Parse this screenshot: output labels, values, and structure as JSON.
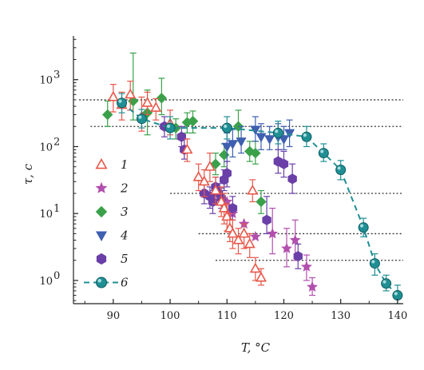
{
  "chart_data": {
    "type": "scatter",
    "title": "",
    "xlabel": "T, °C",
    "ylabel": "τ, c",
    "xlim": [
      83,
      141
    ],
    "ylim": [
      0.45,
      4500
    ],
    "y_scale": "log",
    "x_ticks": [
      "90",
      "100",
      "110",
      "120",
      "130",
      "140"
    ],
    "y_ticks": [
      {
        "value": 1,
        "base": "10",
        "exp": "0"
      },
      {
        "value": 10,
        "base": "10",
        "exp": "1"
      },
      {
        "value": 100,
        "base": "10",
        "exp": "2"
      },
      {
        "value": 1000,
        "base": "10",
        "exp": "3"
      }
    ],
    "reference_lines": [
      {
        "y": 500,
        "x_from": 84,
        "x_to": 141
      },
      {
        "y": 200,
        "x_from": 86,
        "x_to": 141
      },
      {
        "y": 20,
        "x_from": 100,
        "x_to": 141
      },
      {
        "y": 5,
        "x_from": 105,
        "x_to": 141
      },
      {
        "y": 2,
        "x_from": 108,
        "x_to": 141
      }
    ],
    "series": [
      {
        "name": "1",
        "marker": "triangle-up",
        "filled": false,
        "color": "#e8574a",
        "points": [
          {
            "x": 90,
            "y": 550,
            "lo": 330,
            "hi": 850
          },
          {
            "x": 91.5,
            "y": 420,
            "lo": 250,
            "hi": 650
          },
          {
            "x": 93,
            "y": 600,
            "lo": 350,
            "hi": 950
          },
          {
            "x": 95,
            "y": 280,
            "lo": 170,
            "hi": 550
          },
          {
            "x": 96,
            "y": 450,
            "lo": 300,
            "hi": 650
          },
          {
            "x": 97.5,
            "y": 380,
            "lo": 250,
            "hi": 520
          },
          {
            "x": 100,
            "y": 220,
            "lo": 150,
            "hi": 350
          },
          {
            "x": 103,
            "y": 90,
            "lo": 60,
            "hi": 130
          },
          {
            "x": 105,
            "y": 35,
            "lo": 22,
            "hi": 55
          },
          {
            "x": 106,
            "y": 30,
            "lo": 18,
            "hi": 45
          },
          {
            "x": 107,
            "y": 50,
            "lo": 30,
            "hi": 80
          },
          {
            "x": 108,
            "y": 22,
            "lo": 14,
            "hi": 35
          },
          {
            "x": 109,
            "y": 15,
            "lo": 9,
            "hi": 25
          },
          {
            "x": 109.5,
            "y": 12,
            "lo": 7,
            "hi": 20
          },
          {
            "x": 110,
            "y": 9,
            "lo": 5.5,
            "hi": 14
          },
          {
            "x": 110.5,
            "y": 6,
            "lo": 3.8,
            "hi": 10
          },
          {
            "x": 111,
            "y": 5,
            "lo": 3,
            "hi": 8
          },
          {
            "x": 112,
            "y": 4,
            "lo": 2.5,
            "hi": 6
          },
          {
            "x": 113,
            "y": 5,
            "lo": 3,
            "hi": 7
          },
          {
            "x": 114,
            "y": 3.5,
            "lo": 2.2,
            "hi": 5
          },
          {
            "x": 114.5,
            "y": 22,
            "lo": 15,
            "hi": 32
          },
          {
            "x": 115,
            "y": 1.5,
            "lo": 1,
            "hi": 2.2
          },
          {
            "x": 116,
            "y": 1.1,
            "lo": 0.85,
            "hi": 1.5
          }
        ]
      },
      {
        "name": "2",
        "marker": "star",
        "filled": true,
        "color": "#b24fae",
        "points": [
          {
            "x": 106,
            "y": 20
          },
          {
            "x": 110,
            "y": 15
          },
          {
            "x": 111,
            "y": 10
          },
          {
            "x": 113,
            "y": 7
          },
          {
            "x": 115,
            "y": 4.5
          },
          {
            "x": 118,
            "y": 5,
            "lo": 2.5,
            "hi": 12
          },
          {
            "x": 120.5,
            "y": 3,
            "lo": 1.6,
            "hi": 6
          },
          {
            "x": 122,
            "y": 4,
            "lo": 2,
            "hi": 8
          },
          {
            "x": 124,
            "y": 1.6,
            "lo": 1,
            "hi": 2.4
          },
          {
            "x": 125,
            "y": 0.8,
            "lo": 0.6,
            "hi": 1.1
          }
        ]
      },
      {
        "name": "3",
        "marker": "diamond",
        "filled": true,
        "color": "#3aa14a",
        "points": [
          {
            "x": 89,
            "y": 300,
            "lo": 200,
            "hi": 480
          },
          {
            "x": 93.5,
            "y": 480,
            "lo": 250,
            "hi": 2500
          },
          {
            "x": 96,
            "y": 320,
            "lo": 150,
            "hi": 700
          },
          {
            "x": 98.5,
            "y": 530,
            "lo": 300,
            "hi": 1050
          },
          {
            "x": 101,
            "y": 190,
            "lo": 130,
            "hi": 260
          },
          {
            "x": 103,
            "y": 230,
            "lo": 160,
            "hi": 320
          },
          {
            "x": 104,
            "y": 240,
            "lo": 160,
            "hi": 340
          },
          {
            "x": 108,
            "y": 55,
            "lo": 38,
            "hi": 80
          },
          {
            "x": 109.5,
            "y": 75,
            "lo": 50,
            "hi": 110
          },
          {
            "x": 112,
            "y": 200,
            "lo": 120,
            "hi": 350
          },
          {
            "x": 114,
            "y": 85,
            "lo": 60,
            "hi": 120
          },
          {
            "x": 115,
            "y": 80,
            "lo": 55,
            "hi": 120
          },
          {
            "x": 116,
            "y": 15,
            "lo": 10,
            "hi": 22
          }
        ]
      },
      {
        "name": "4",
        "marker": "triangle-down",
        "filled": true,
        "color": "#3f5fb0",
        "points": [
          {
            "x": 110,
            "y": 100,
            "lo": 60,
            "hi": 160
          },
          {
            "x": 111,
            "y": 110,
            "lo": 70,
            "hi": 180
          },
          {
            "x": 112.5,
            "y": 120,
            "lo": 80,
            "hi": 200
          },
          {
            "x": 115,
            "y": 180,
            "lo": 120,
            "hi": 280
          },
          {
            "x": 116,
            "y": 140,
            "lo": 90,
            "hi": 220
          },
          {
            "x": 117.5,
            "y": 130,
            "lo": 90,
            "hi": 200
          },
          {
            "x": 119,
            "y": 140,
            "lo": 90,
            "hi": 220
          },
          {
            "x": 120,
            "y": 130,
            "lo": 90,
            "hi": 200
          },
          {
            "x": 121,
            "y": 160,
            "lo": 100,
            "hi": 250
          }
        ]
      },
      {
        "name": "5",
        "marker": "hexagon",
        "filled": true,
        "color": "#6a3fa8",
        "points": [
          {
            "x": 99,
            "y": 200,
            "lo": 140,
            "hi": 280
          },
          {
            "x": 102,
            "y": 140,
            "lo": 100,
            "hi": 200
          },
          {
            "x": 102.5,
            "y": 90,
            "lo": 65,
            "hi": 130
          },
          {
            "x": 106,
            "y": 20,
            "lo": 14,
            "hi": 28
          },
          {
            "x": 107,
            "y": 18,
            "lo": 12,
            "hi": 25
          },
          {
            "x": 107.5,
            "y": 15,
            "lo": 10,
            "hi": 22
          },
          {
            "x": 108,
            "y": 25,
            "lo": 18,
            "hi": 35
          },
          {
            "x": 108.5,
            "y": 20,
            "lo": 14,
            "hi": 28
          },
          {
            "x": 109,
            "y": 17,
            "lo": 12,
            "hi": 24
          },
          {
            "x": 109.5,
            "y": 32,
            "lo": 22,
            "hi": 45
          },
          {
            "x": 110,
            "y": 40,
            "lo": 25,
            "hi": 60
          },
          {
            "x": 111,
            "y": 12,
            "lo": 8,
            "hi": 18
          },
          {
            "x": 117,
            "y": 8,
            "lo": 5,
            "hi": 18
          },
          {
            "x": 119,
            "y": 60,
            "lo": 40,
            "hi": 90
          },
          {
            "x": 120,
            "y": 55,
            "lo": 35,
            "hi": 85
          },
          {
            "x": 121.5,
            "y": 33,
            "lo": 20,
            "hi": 55
          },
          {
            "x": 122.5,
            "y": 2.3,
            "lo": 1.5,
            "hi": 3.5
          }
        ]
      },
      {
        "name": "6",
        "marker": "circle",
        "filled": true,
        "color": "#1f8f94",
        "line": "dashed",
        "points": [
          {
            "x": 91.5,
            "y": 450,
            "lo": 320,
            "hi": 620
          },
          {
            "x": 95,
            "y": 260,
            "lo": 190,
            "hi": 360
          },
          {
            "x": 100,
            "y": 190,
            "lo": 130,
            "hi": 280
          },
          {
            "x": 110,
            "y": 190,
            "lo": 130,
            "hi": 280
          },
          {
            "x": 119,
            "y": 160,
            "lo": 110,
            "hi": 240
          },
          {
            "x": 124,
            "y": 140,
            "lo": 100,
            "hi": 200
          },
          {
            "x": 127,
            "y": 80,
            "lo": 60,
            "hi": 110
          },
          {
            "x": 130,
            "y": 45,
            "lo": 32,
            "hi": 62
          },
          {
            "x": 134,
            "y": 6.2,
            "lo": 4.5,
            "hi": 8.5
          },
          {
            "x": 136,
            "y": 1.8,
            "lo": 1.2,
            "hi": 2.5
          },
          {
            "x": 138,
            "y": 0.9,
            "lo": 0.7,
            "hi": 1.2
          },
          {
            "x": 140,
            "y": 0.6,
            "lo": 0.45,
            "hi": 0.85
          }
        ]
      }
    ]
  }
}
